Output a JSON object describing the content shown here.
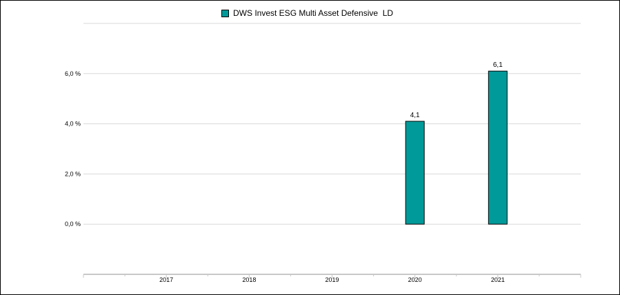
{
  "chart_data": {
    "type": "bar",
    "categories": [
      "2017",
      "2018",
      "2019",
      "2020",
      "2021"
    ],
    "series": [
      {
        "name": "DWS Invest ESG Multi Asset Defensive  LD",
        "values": [
          null,
          null,
          null,
          4.1,
          6.1
        ]
      }
    ],
    "data_labels": [
      "",
      "",
      "",
      "4,1",
      "6,1"
    ],
    "y_ticks": [
      0,
      2,
      4,
      6
    ],
    "y_tick_labels": [
      "0,0 %",
      "2,0 %",
      "4,0 %",
      "6,0 %"
    ],
    "ylim": [
      -2,
      8
    ],
    "grid": true,
    "legend_position": "top",
    "colors": {
      "bar": "#009a9a",
      "bar_border": "#000000",
      "grid": "#d9d9d9",
      "axis": "#c8c8c8"
    }
  }
}
